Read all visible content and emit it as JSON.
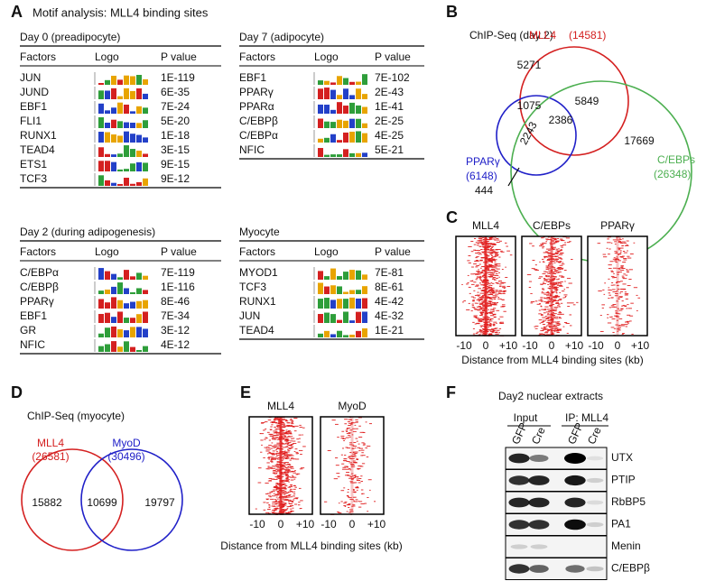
{
  "a": {
    "label": "A",
    "title": "Motif analysis: MLL4 binding sites",
    "tables": [
      {
        "title": "Day 0 (preadipocyte)",
        "header": [
          "Factors",
          "Logo",
          "P value"
        ],
        "rows": [
          [
            "JUN",
            "1E-119"
          ],
          [
            "JUND",
            "6E-35"
          ],
          [
            "EBF1",
            "7E-24"
          ],
          [
            "FLI1",
            "5E-20"
          ],
          [
            "RUNX1",
            "1E-18"
          ],
          [
            "TEAD4",
            "3E-15"
          ],
          [
            "ETS1",
            "9E-15"
          ],
          [
            "TCF3",
            "9E-12"
          ]
        ]
      },
      {
        "title": "Day 7 (adipocyte)",
        "header": [
          "Factors",
          "Logo",
          "P value"
        ],
        "rows": [
          [
            "EBF1",
            "7E-102"
          ],
          [
            "PPARγ",
            "2E-43"
          ],
          [
            "PPARα",
            "1E-41"
          ],
          [
            "C/EBPβ",
            "2E-25"
          ],
          [
            "C/EBPα",
            "4E-25"
          ],
          [
            "NFIC",
            "5E-21"
          ]
        ]
      },
      {
        "title": "Day 2 (during adipogenesis)",
        "header": [
          "Factors",
          "Logo",
          "P value"
        ],
        "rows": [
          [
            "C/EBPα",
            "7E-119"
          ],
          [
            "C/EBPβ",
            "1E-116"
          ],
          [
            "PPARγ",
            "8E-46"
          ],
          [
            "EBF1",
            "7E-34"
          ],
          [
            "GR",
            "3E-12"
          ],
          [
            "NFIC",
            "4E-12"
          ]
        ]
      },
      {
        "title": "Myocyte",
        "header": [
          "Factors",
          "Logo",
          "P value"
        ],
        "rows": [
          [
            "MYOD1",
            "7E-81"
          ],
          [
            "TCF3",
            "8E-61"
          ],
          [
            "RUNX1",
            "4E-42"
          ],
          [
            "JUN",
            "4E-32"
          ],
          [
            "TEAD4",
            "1E-21"
          ]
        ]
      }
    ]
  },
  "b": {
    "label": "B",
    "title": "ChIP-Seq (day 2)",
    "sets": [
      {
        "name": "MLL4",
        "count": "(14581)"
      },
      {
        "name": "PPARγ",
        "count": "(6148)"
      },
      {
        "name": "C/EBPs",
        "count": "(26348)"
      }
    ],
    "regions": [
      "5271",
      "5849",
      "1075",
      "2386",
      "2243",
      "17669",
      "444"
    ]
  },
  "c": {
    "label": "C",
    "panels": [
      "MLL4",
      "C/EBPs",
      "PPARγ"
    ],
    "ticks": [
      "-10",
      "0",
      "+10"
    ],
    "xlabel": "Distance from MLL4 binding sites (kb)"
  },
  "d": {
    "label": "D",
    "title": "ChIP-Seq (myocyte)",
    "sets": [
      {
        "name": "MLL4",
        "count": "(26581)"
      },
      {
        "name": "MyoD",
        "count": "(30496)"
      }
    ],
    "regions": [
      "15882",
      "10699",
      "19797"
    ]
  },
  "e": {
    "label": "E",
    "panels": [
      "MLL4",
      "MyoD"
    ],
    "ticks": [
      "-10",
      "0",
      "+10"
    ],
    "xlabel": "Distance from MLL4 binding sites (kb)"
  },
  "f": {
    "label": "F",
    "title": "Day2 nuclear extracts",
    "groups": [
      "Input",
      "IP: MLL4"
    ],
    "lanes": [
      "GFP",
      "Cre",
      "GFP",
      "Cre"
    ],
    "rows": [
      "UTX",
      "PTIP",
      "RbBP5",
      "PA1",
      "Menin",
      "C/EBPβ"
    ]
  }
}
